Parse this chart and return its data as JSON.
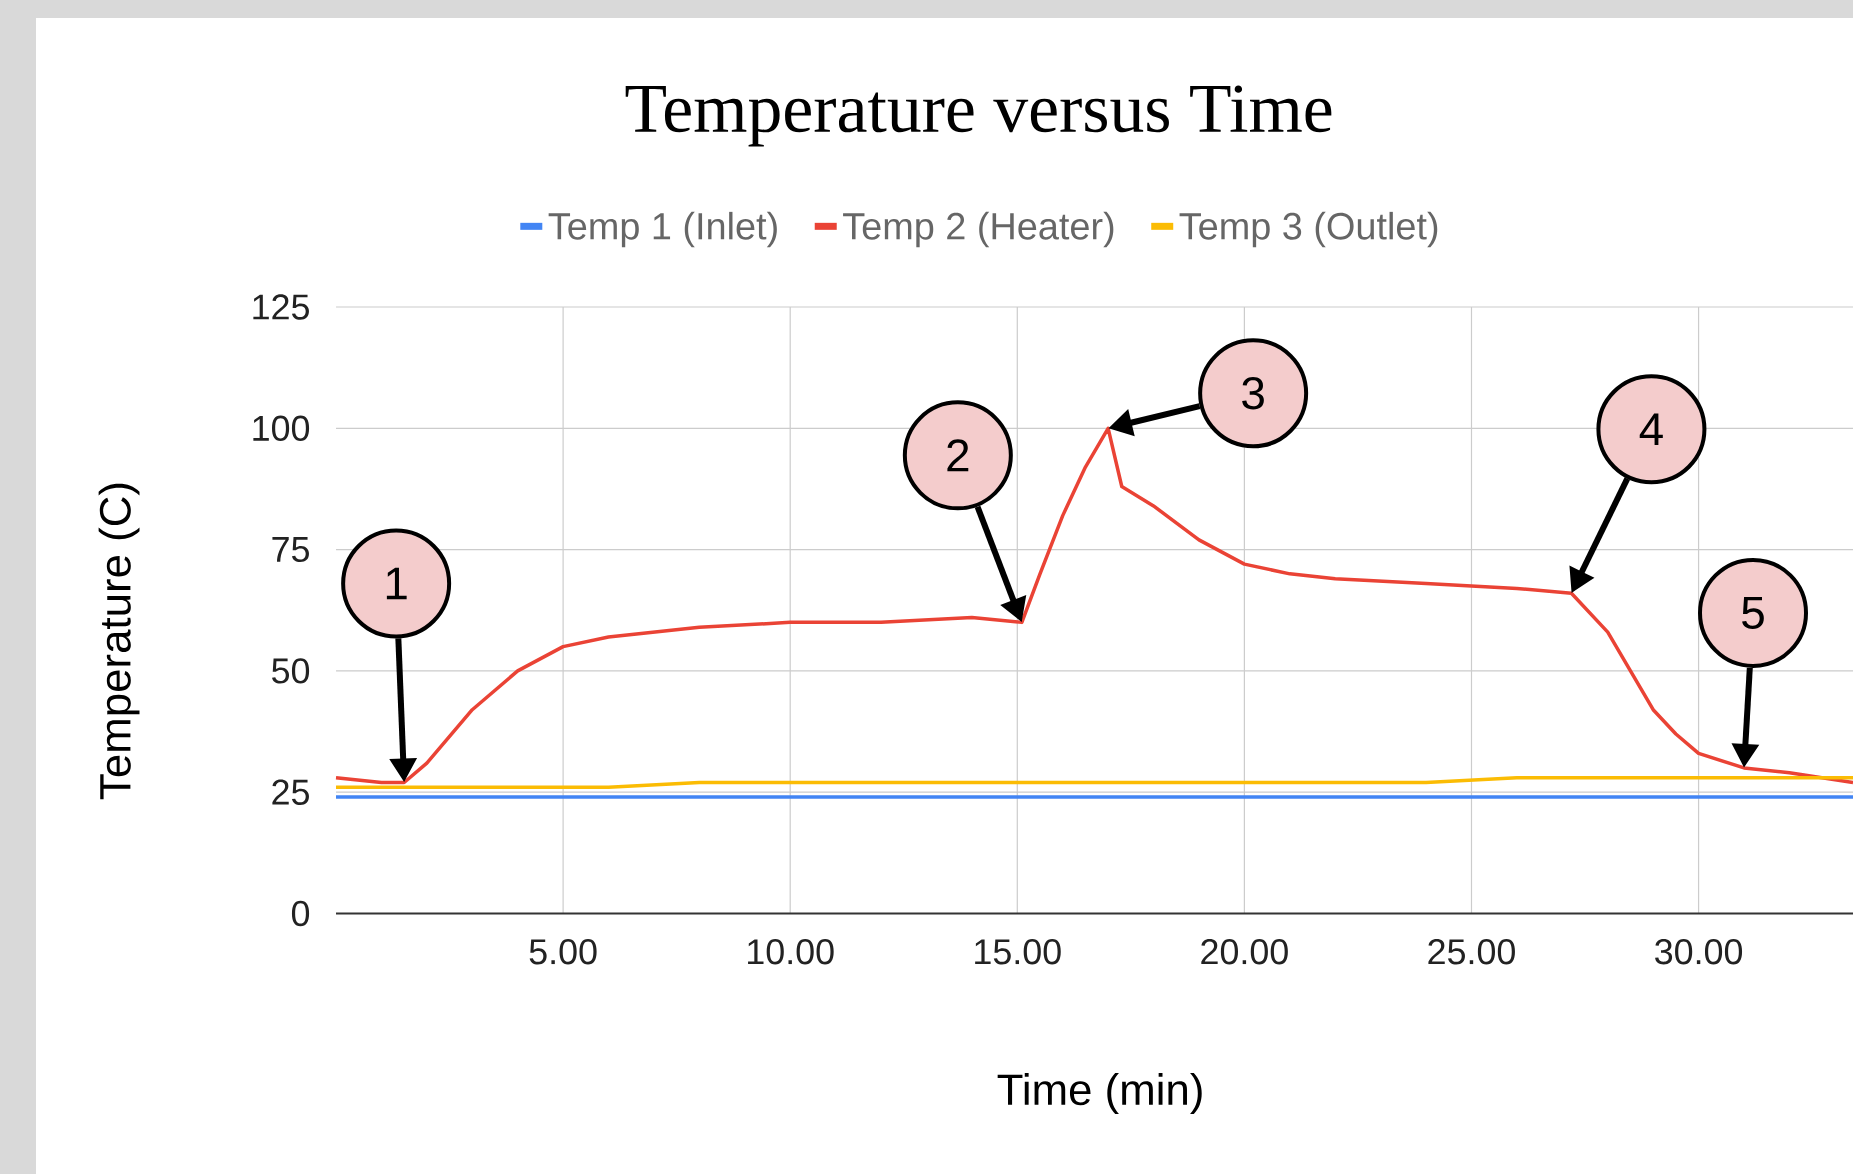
{
  "chart_data": {
    "type": "line",
    "title": "Temperature versus Time",
    "xlabel": "Time (min)",
    "ylabel": "Temperature (C)",
    "xlim": [
      0,
      33.4
    ],
    "ylim": [
      0,
      125
    ],
    "xticks": [
      {
        "value": 5,
        "label": "5.00"
      },
      {
        "value": 10,
        "label": "10.00"
      },
      {
        "value": 15,
        "label": "15.00"
      },
      {
        "value": 20,
        "label": "20.00"
      },
      {
        "value": 25,
        "label": "25.00"
      },
      {
        "value": 30,
        "label": "30.00"
      }
    ],
    "yticks": [
      0,
      25,
      50,
      75,
      100,
      125
    ],
    "grid": true,
    "legend": "top",
    "marker": "none",
    "line_style": "solid",
    "series": [
      {
        "name": "Temp 1 (Inlet)",
        "color": "#4285f4",
        "x": [
          0,
          2,
          4,
          6,
          8,
          10,
          12,
          14,
          16,
          18,
          20,
          22,
          24,
          26,
          28,
          30,
          32,
          33.4
        ],
        "values": [
          24,
          24,
          24,
          24,
          24,
          24,
          24,
          24,
          24,
          24,
          24,
          24,
          24,
          24,
          24,
          24,
          24,
          24
        ]
      },
      {
        "name": "Temp 2 (Heater)",
        "color": "#ea4335",
        "x": [
          0,
          1,
          1.5,
          2,
          3,
          4,
          5,
          6,
          7,
          8,
          10,
          12,
          14,
          15.1,
          15.5,
          16,
          16.5,
          17,
          17.3,
          18,
          19,
          20,
          21,
          22,
          24,
          26,
          27.2,
          28,
          28.5,
          29,
          29.5,
          30,
          31,
          32,
          33.4
        ],
        "values": [
          28,
          27,
          27,
          31,
          42,
          50,
          55,
          57,
          58,
          59,
          60,
          60,
          61,
          60,
          70,
          82,
          92,
          100,
          88,
          84,
          77,
          72,
          70,
          69,
          68,
          67,
          66,
          58,
          50,
          42,
          37,
          33,
          30,
          29,
          27
        ]
      },
      {
        "name": "Temp 3 (Outlet)",
        "color": "#fbbc04",
        "x": [
          0,
          2,
          4,
          6,
          8,
          10,
          12,
          14,
          16,
          18,
          20,
          22,
          24,
          26,
          28,
          30,
          32,
          33.4
        ],
        "values": [
          26,
          26,
          26,
          26,
          27,
          27,
          27,
          27,
          27,
          27,
          27,
          27,
          27,
          28,
          28,
          28,
          28,
          28
        ]
      }
    ],
    "annotations": [
      "1",
      "2",
      "3",
      "4",
      "5"
    ]
  }
}
